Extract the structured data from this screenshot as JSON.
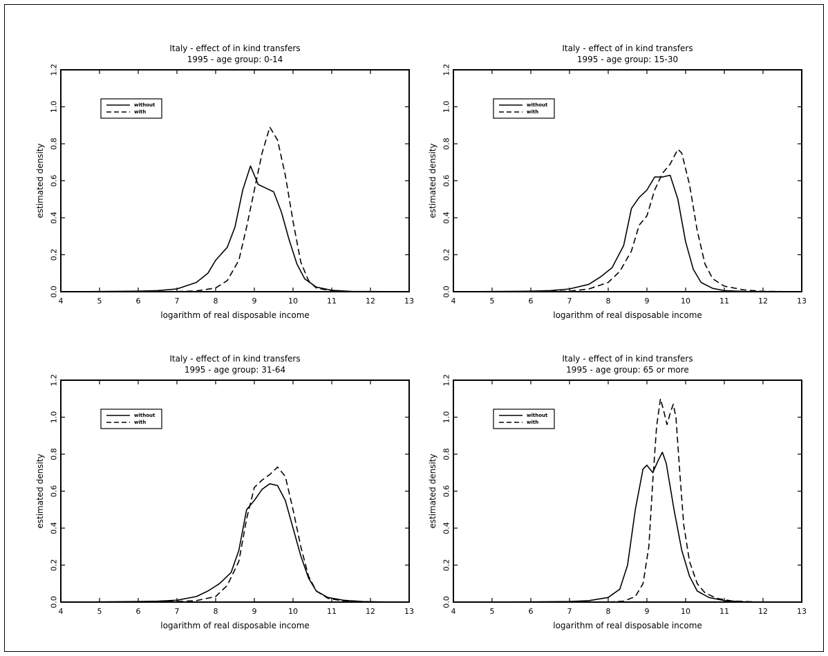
{
  "chart_data": [
    {
      "type": "line",
      "title": "Italy - effect of in kind transfers",
      "subtitle": "1995 - age group: 0-14",
      "xlabel": "logarithm of real disposable income",
      "ylabel": "estimated density",
      "xlim": [
        4,
        13
      ],
      "ylim": [
        0,
        1.2
      ],
      "xticks": [
        "4",
        "5",
        "6",
        "7",
        "8",
        "9",
        "10",
        "11",
        "12",
        "13"
      ],
      "yticks": [
        "0.0",
        "0.2",
        "0.4",
        "0.6",
        "0.8",
        "1.0",
        "1.2"
      ],
      "legend_position": "top-left",
      "grid": false,
      "series": [
        {
          "name": "without",
          "style": "solid",
          "points": [
            [
              4,
              0
            ],
            [
              5,
              0.001
            ],
            [
              6,
              0.003
            ],
            [
              6.5,
              0.006
            ],
            [
              7,
              0.015
            ],
            [
              7.5,
              0.05
            ],
            [
              7.8,
              0.1
            ],
            [
              8,
              0.17
            ],
            [
              8.3,
              0.24
            ],
            [
              8.5,
              0.35
            ],
            [
              8.7,
              0.55
            ],
            [
              8.9,
              0.68
            ],
            [
              9.1,
              0.58
            ],
            [
              9.3,
              0.56
            ],
            [
              9.5,
              0.54
            ],
            [
              9.7,
              0.43
            ],
            [
              9.9,
              0.28
            ],
            [
              10.1,
              0.15
            ],
            [
              10.3,
              0.07
            ],
            [
              10.6,
              0.025
            ],
            [
              11,
              0.008
            ],
            [
              11.5,
              0.002
            ],
            [
              12,
              0.001
            ],
            [
              13,
              0
            ]
          ]
        },
        {
          "name": "with",
          "style": "dashed",
          "points": [
            [
              4,
              0
            ],
            [
              6,
              0
            ],
            [
              7,
              0.001
            ],
            [
              7.5,
              0.004
            ],
            [
              8,
              0.02
            ],
            [
              8.3,
              0.06
            ],
            [
              8.6,
              0.17
            ],
            [
              8.8,
              0.35
            ],
            [
              9,
              0.55
            ],
            [
              9.2,
              0.75
            ],
            [
              9.4,
              0.89
            ],
            [
              9.6,
              0.82
            ],
            [
              9.8,
              0.63
            ],
            [
              10,
              0.38
            ],
            [
              10.2,
              0.16
            ],
            [
              10.4,
              0.06
            ],
            [
              10.6,
              0.02
            ],
            [
              11,
              0.005
            ],
            [
              11.5,
              0.001
            ],
            [
              12,
              0
            ],
            [
              13,
              0
            ]
          ]
        }
      ]
    },
    {
      "type": "line",
      "title": "Italy - effect of in kind transfers",
      "subtitle": "1995 - age group: 15-30",
      "xlabel": "logarithm of real disposable income",
      "ylabel": "estimated density",
      "xlim": [
        4,
        13
      ],
      "ylim": [
        0,
        1.2
      ],
      "xticks": [
        "4",
        "5",
        "6",
        "7",
        "8",
        "9",
        "10",
        "11",
        "12",
        "13"
      ],
      "yticks": [
        "0.0",
        "0.2",
        "0.4",
        "0.6",
        "0.8",
        "1.0",
        "1.2"
      ],
      "legend_position": "top-left",
      "grid": false,
      "series": [
        {
          "name": "without",
          "style": "solid",
          "points": [
            [
              4,
              0
            ],
            [
              5,
              0.001
            ],
            [
              6,
              0.003
            ],
            [
              6.5,
              0.006
            ],
            [
              7,
              0.015
            ],
            [
              7.5,
              0.04
            ],
            [
              7.8,
              0.08
            ],
            [
              8.1,
              0.13
            ],
            [
              8.4,
              0.25
            ],
            [
              8.6,
              0.45
            ],
            [
              8.8,
              0.51
            ],
            [
              9,
              0.55
            ],
            [
              9.2,
              0.62
            ],
            [
              9.4,
              0.62
            ],
            [
              9.6,
              0.63
            ],
            [
              9.8,
              0.5
            ],
            [
              10,
              0.27
            ],
            [
              10.2,
              0.12
            ],
            [
              10.4,
              0.05
            ],
            [
              10.7,
              0.018
            ],
            [
              11,
              0.006
            ],
            [
              11.5,
              0.002
            ],
            [
              12,
              0.001
            ],
            [
              13,
              0
            ]
          ]
        },
        {
          "name": "with",
          "style": "dashed",
          "points": [
            [
              4,
              0
            ],
            [
              6,
              0.001
            ],
            [
              7,
              0.003
            ],
            [
              7.5,
              0.015
            ],
            [
              8,
              0.05
            ],
            [
              8.3,
              0.11
            ],
            [
              8.6,
              0.22
            ],
            [
              8.8,
              0.36
            ],
            [
              9,
              0.41
            ],
            [
              9.2,
              0.55
            ],
            [
              9.4,
              0.64
            ],
            [
              9.6,
              0.69
            ],
            [
              9.8,
              0.77
            ],
            [
              9.9,
              0.75
            ],
            [
              10.1,
              0.58
            ],
            [
              10.3,
              0.33
            ],
            [
              10.5,
              0.15
            ],
            [
              10.7,
              0.07
            ],
            [
              11,
              0.03
            ],
            [
              11.5,
              0.01
            ],
            [
              12,
              0.002
            ],
            [
              13,
              0
            ]
          ]
        }
      ]
    },
    {
      "type": "line",
      "title": "Italy - effect of in kind transfers",
      "subtitle": "1995 - age group: 31-64",
      "xlabel": "logarithm of real disposable income",
      "ylabel": "estimated density",
      "xlim": [
        4,
        13
      ],
      "ylim": [
        0,
        1.2
      ],
      "xticks": [
        "4",
        "5",
        "6",
        "7",
        "8",
        "9",
        "10",
        "11",
        "12",
        "13"
      ],
      "yticks": [
        "0.0",
        "0.2",
        "0.4",
        "0.6",
        "0.8",
        "1.0",
        "1.2"
      ],
      "legend_position": "top-left",
      "grid": false,
      "series": [
        {
          "name": "without",
          "style": "solid",
          "points": [
            [
              4,
              0
            ],
            [
              5,
              0.001
            ],
            [
              6,
              0.003
            ],
            [
              6.5,
              0.005
            ],
            [
              7,
              0.01
            ],
            [
              7.5,
              0.03
            ],
            [
              7.8,
              0.06
            ],
            [
              8.1,
              0.1
            ],
            [
              8.4,
              0.16
            ],
            [
              8.6,
              0.28
            ],
            [
              8.8,
              0.5
            ],
            [
              9,
              0.55
            ],
            [
              9.2,
              0.61
            ],
            [
              9.4,
              0.64
            ],
            [
              9.6,
              0.63
            ],
            [
              9.8,
              0.55
            ],
            [
              10,
              0.4
            ],
            [
              10.2,
              0.25
            ],
            [
              10.4,
              0.13
            ],
            [
              10.6,
              0.06
            ],
            [
              10.9,
              0.025
            ],
            [
              11.3,
              0.01
            ],
            [
              11.8,
              0.003
            ],
            [
              12.2,
              0.001
            ],
            [
              13,
              0
            ]
          ]
        },
        {
          "name": "with",
          "style": "dashed",
          "points": [
            [
              4,
              0
            ],
            [
              6,
              0.001
            ],
            [
              7,
              0.003
            ],
            [
              7.5,
              0.008
            ],
            [
              8,
              0.03
            ],
            [
              8.3,
              0.09
            ],
            [
              8.6,
              0.22
            ],
            [
              8.8,
              0.45
            ],
            [
              9,
              0.62
            ],
            [
              9.2,
              0.66
            ],
            [
              9.4,
              0.69
            ],
            [
              9.6,
              0.73
            ],
            [
              9.8,
              0.68
            ],
            [
              10,
              0.5
            ],
            [
              10.2,
              0.3
            ],
            [
              10.4,
              0.14
            ],
            [
              10.6,
              0.06
            ],
            [
              10.9,
              0.02
            ],
            [
              11.3,
              0.006
            ],
            [
              12,
              0.001
            ],
            [
              13,
              0
            ]
          ]
        }
      ]
    },
    {
      "type": "line",
      "title": "Italy - effect of in kind transfers",
      "subtitle": "1995 - age group: 65 or more",
      "xlabel": "logarithm of real disposable income",
      "ylabel": "estimated density",
      "xlim": [
        4,
        13
      ],
      "ylim": [
        0,
        1.2
      ],
      "xticks": [
        "4",
        "5",
        "6",
        "7",
        "8",
        "9",
        "10",
        "11",
        "12",
        "13"
      ],
      "yticks": [
        "0.0",
        "0.2",
        "0.4",
        "0.6",
        "0.8",
        "1.0",
        "1.2"
      ],
      "legend_position": "top-left",
      "grid": false,
      "series": [
        {
          "name": "without",
          "style": "solid",
          "points": [
            [
              4,
              0
            ],
            [
              6,
              0.001
            ],
            [
              7,
              0.003
            ],
            [
              7.5,
              0.008
            ],
            [
              8,
              0.025
            ],
            [
              8.3,
              0.07
            ],
            [
              8.5,
              0.2
            ],
            [
              8.7,
              0.5
            ],
            [
              8.9,
              0.72
            ],
            [
              9,
              0.74
            ],
            [
              9.15,
              0.7
            ],
            [
              9.3,
              0.77
            ],
            [
              9.4,
              0.81
            ],
            [
              9.5,
              0.75
            ],
            [
              9.7,
              0.5
            ],
            [
              9.9,
              0.28
            ],
            [
              10.1,
              0.14
            ],
            [
              10.3,
              0.06
            ],
            [
              10.6,
              0.025
            ],
            [
              11,
              0.008
            ],
            [
              11.5,
              0.002
            ],
            [
              12,
              0
            ],
            [
              13,
              0
            ]
          ]
        },
        {
          "name": "with",
          "style": "dashed",
          "points": [
            [
              4,
              0
            ],
            [
              8,
              0
            ],
            [
              8.4,
              0.005
            ],
            [
              8.7,
              0.03
            ],
            [
              8.9,
              0.1
            ],
            [
              9.05,
              0.3
            ],
            [
              9.15,
              0.65
            ],
            [
              9.25,
              0.95
            ],
            [
              9.35,
              1.1
            ],
            [
              9.45,
              1.02
            ],
            [
              9.52,
              0.96
            ],
            [
              9.6,
              1.02
            ],
            [
              9.68,
              1.07
            ],
            [
              9.75,
              1.0
            ],
            [
              9.85,
              0.7
            ],
            [
              9.95,
              0.42
            ],
            [
              10.1,
              0.22
            ],
            [
              10.3,
              0.1
            ],
            [
              10.5,
              0.05
            ],
            [
              10.8,
              0.02
            ],
            [
              11.2,
              0.006
            ],
            [
              11.8,
              0.001
            ],
            [
              13,
              0
            ]
          ]
        }
      ]
    }
  ]
}
